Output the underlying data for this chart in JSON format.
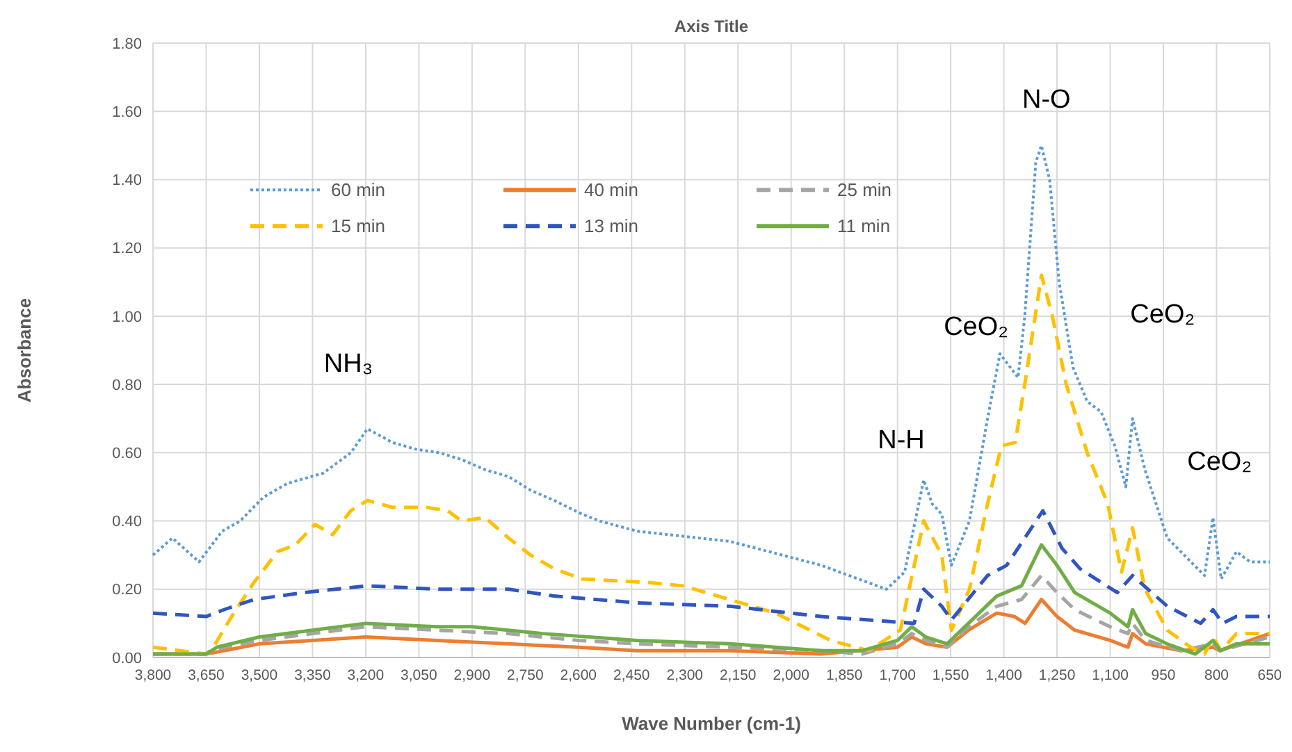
{
  "chart_data": {
    "type": "line",
    "title": "Axis Title",
    "xlabel": "Wave Number (cm-1)",
    "ylabel": "Absorbance",
    "xlim": [
      3800,
      650
    ],
    "xticks": [
      {
        "value": 3800,
        "label": "3,800"
      },
      {
        "value": 3650,
        "label": "3,650"
      },
      {
        "value": 3500,
        "label": "3,500"
      },
      {
        "value": 3350,
        "label": "3,350"
      },
      {
        "value": 3200,
        "label": "3,200"
      },
      {
        "value": 3050,
        "label": "3,050"
      },
      {
        "value": 2900,
        "label": "2,900"
      },
      {
        "value": 2750,
        "label": "2,750"
      },
      {
        "value": 2600,
        "label": "2,600"
      },
      {
        "value": 2450,
        "label": "2,450"
      },
      {
        "value": 2300,
        "label": "2,300"
      },
      {
        "value": 2150,
        "label": "2,150"
      },
      {
        "value": 2000,
        "label": "2,000"
      },
      {
        "value": 1850,
        "label": "1,850"
      },
      {
        "value": 1700,
        "label": "1,700"
      },
      {
        "value": 1550,
        "label": "1,550"
      },
      {
        "value": 1400,
        "label": "1,400"
      },
      {
        "value": 1250,
        "label": "1,250"
      },
      {
        "value": 1100,
        "label": "1,100"
      },
      950,
      800,
      650
    ],
    "ylim": [
      0,
      1.8
    ],
    "yticks": [
      {
        "value": 0,
        "label": "0.00"
      },
      {
        "value": 0.2,
        "label": "0.20"
      },
      {
        "value": 0.4,
        "label": "0.40"
      },
      {
        "value": 0.6,
        "label": "0.60"
      },
      {
        "value": 0.8,
        "label": "0.80"
      },
      {
        "value": 1,
        "label": "1.00"
      },
      {
        "value": 1.2,
        "label": "1.20"
      },
      {
        "value": 1.4,
        "label": "1.40"
      },
      {
        "value": 1.6,
        "label": "1.60"
      },
      {
        "value": 1.8,
        "label": "1.80"
      }
    ],
    "grid": true,
    "legend": "top left",
    "annotations": [
      "NH₃",
      "N-H",
      "CeO₂",
      "N-O",
      "CeO₂",
      "CeO₂"
    ],
    "series": [
      {
        "name": "60 min",
        "color": "#5b9bd5",
        "line_style": "dotted",
        "x": [
          3800,
          3745,
          3670,
          3605,
          3554,
          3488,
          3421,
          3320,
          3242,
          3195,
          3125,
          3058,
          2992,
          2930,
          2863,
          2797,
          2735,
          2668,
          2590,
          2540,
          2434,
          2172,
          1915,
          1731,
          1680,
          1626,
          1602,
          1575,
          1548,
          1497,
          1446,
          1411,
          1360,
          1341,
          1310,
          1294,
          1271,
          1244,
          1205,
          1165,
          1126,
          1087,
          1056,
          1037,
          1002,
          939,
          834,
          810,
          787,
          744,
          705,
          650
        ],
        "values": [
          0.3,
          0.35,
          0.28,
          0.37,
          0.4,
          0.47,
          0.51,
          0.54,
          0.6,
          0.67,
          0.63,
          0.61,
          0.6,
          0.58,
          0.55,
          0.53,
          0.49,
          0.46,
          0.42,
          0.4,
          0.37,
          0.34,
          0.27,
          0.2,
          0.25,
          0.52,
          0.45,
          0.42,
          0.27,
          0.4,
          0.7,
          0.89,
          0.82,
          1.0,
          1.45,
          1.5,
          1.4,
          1.1,
          0.85,
          0.75,
          0.72,
          0.62,
          0.5,
          0.7,
          0.55,
          0.35,
          0.24,
          0.41,
          0.23,
          0.31,
          0.28,
          0.28
        ]
      },
      {
        "name": "40 min",
        "color": "#ed7d31",
        "line_style": "solid",
        "x": [
          3800,
          3650,
          3600,
          3500,
          3350,
          3200,
          3000,
          2800,
          2600,
          2434,
          2172,
          1915,
          1700,
          1660,
          1620,
          1560,
          1500,
          1420,
          1370,
          1340,
          1294,
          1250,
          1200,
          1100,
          1050,
          1037,
          1000,
          900,
          810,
          790,
          650
        ],
        "values": [
          0.01,
          0.01,
          0.02,
          0.04,
          0.05,
          0.06,
          0.05,
          0.04,
          0.03,
          0.02,
          0.02,
          0.01,
          0.03,
          0.06,
          0.04,
          0.03,
          0.08,
          0.13,
          0.12,
          0.1,
          0.17,
          0.12,
          0.08,
          0.05,
          0.03,
          0.07,
          0.04,
          0.02,
          0.03,
          0.02,
          0.07
        ]
      },
      {
        "name": "25 min",
        "color": "#a5a5a5",
        "line_style": "dashed",
        "x": [
          3800,
          3650,
          3600,
          3500,
          3350,
          3200,
          3000,
          2800,
          2600,
          2434,
          2172,
          1915,
          1800,
          1700,
          1660,
          1620,
          1560,
          1500,
          1420,
          1350,
          1294,
          1250,
          1200,
          1100,
          1050,
          1037,
          1000,
          900,
          810,
          790,
          650
        ],
        "values": [
          0.01,
          0.01,
          0.03,
          0.05,
          0.07,
          0.09,
          0.08,
          0.07,
          0.05,
          0.04,
          0.03,
          0.02,
          0.01,
          0.04,
          0.07,
          0.05,
          0.03,
          0.09,
          0.15,
          0.17,
          0.24,
          0.19,
          0.14,
          0.09,
          0.07,
          0.1,
          0.05,
          0.02,
          0.04,
          0.02,
          0.06
        ]
      },
      {
        "name": "15 min",
        "color": "#ffc000",
        "line_style": "dashed",
        "x": [
          3800,
          3650,
          3630,
          3578,
          3515,
          3449,
          3398,
          3343,
          3293,
          3242,
          3195,
          3125,
          3031,
          2969,
          2930,
          2863,
          2797,
          2735,
          2668,
          2590,
          2407,
          2305,
          2044,
          1888,
          1782,
          1692,
          1626,
          1575,
          1548,
          1497,
          1446,
          1407,
          1368,
          1341,
          1294,
          1263,
          1224,
          1165,
          1107,
          1068,
          1037,
          1002,
          939,
          873,
          834,
          810,
          787,
          744,
          650
        ],
        "values": [
          0.03,
          0.01,
          0.03,
          0.12,
          0.22,
          0.31,
          0.33,
          0.39,
          0.36,
          0.43,
          0.46,
          0.44,
          0.44,
          0.43,
          0.4,
          0.41,
          0.35,
          0.3,
          0.26,
          0.23,
          0.22,
          0.21,
          0.13,
          0.05,
          0.02,
          0.08,
          0.4,
          0.3,
          0.08,
          0.2,
          0.45,
          0.62,
          0.63,
          0.8,
          1.12,
          1.0,
          0.8,
          0.6,
          0.45,
          0.25,
          0.38,
          0.2,
          0.08,
          0.03,
          0.01,
          0.06,
          0.02,
          0.07,
          0.07
        ]
      },
      {
        "name": "13 min",
        "color": "#2f55c0",
        "line_style": "dashed",
        "x": [
          3800,
          3650,
          3600,
          3515,
          3375,
          3195,
          2992,
          2797,
          2668,
          2434,
          2172,
          1915,
          1653,
          1626,
          1575,
          1548,
          1446,
          1392,
          1290,
          1236,
          1185,
          1080,
          1037,
          939,
          845,
          810,
          783,
          744,
          650
        ],
        "values": [
          0.13,
          0.12,
          0.14,
          0.17,
          0.19,
          0.21,
          0.2,
          0.2,
          0.18,
          0.16,
          0.15,
          0.12,
          0.1,
          0.2,
          0.15,
          0.11,
          0.24,
          0.27,
          0.43,
          0.32,
          0.26,
          0.19,
          0.24,
          0.15,
          0.1,
          0.14,
          0.1,
          0.12,
          0.12
        ]
      },
      {
        "name": "11 min",
        "color": "#70ad47",
        "line_style": "solid",
        "x": [
          3800,
          3650,
          3620,
          3500,
          3350,
          3200,
          3000,
          2900,
          2700,
          2434,
          2172,
          1915,
          1800,
          1700,
          1660,
          1620,
          1560,
          1500,
          1420,
          1350,
          1294,
          1250,
          1200,
          1100,
          1050,
          1037,
          1000,
          940,
          860,
          810,
          790,
          744,
          650
        ],
        "values": [
          0.01,
          0.01,
          0.03,
          0.06,
          0.08,
          0.1,
          0.09,
          0.09,
          0.07,
          0.05,
          0.04,
          0.02,
          0.02,
          0.05,
          0.09,
          0.06,
          0.04,
          0.1,
          0.18,
          0.21,
          0.33,
          0.27,
          0.19,
          0.13,
          0.09,
          0.14,
          0.07,
          0.04,
          0.01,
          0.05,
          0.02,
          0.04,
          0.04
        ]
      }
    ]
  }
}
